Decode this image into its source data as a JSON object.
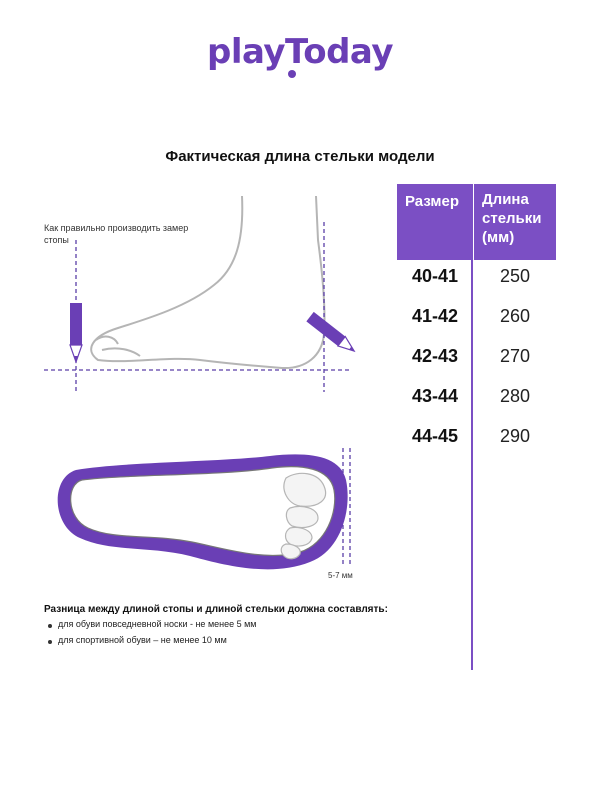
{
  "brand": {
    "logo": "playToday",
    "accent_color": "#7b4fc4"
  },
  "title": "Фактическая длина стельки модели",
  "instruction": "Как правильно производить замер стопы",
  "table": {
    "header_size": "Размер",
    "header_length": "Длина стельки (мм)",
    "rows": [
      {
        "size": "40-41",
        "length": "250"
      },
      {
        "size": "41-42",
        "length": "260"
      },
      {
        "size": "42-43",
        "length": "270"
      },
      {
        "size": "43-44",
        "length": "280"
      },
      {
        "size": "44-45",
        "length": "290"
      }
    ]
  },
  "insole_gap_label": "5-7 мм",
  "note": {
    "title": "Разница между длиной стопы и длиной стельки должна составлять:",
    "items": [
      "для обуви повседневной носки -  не менее 5 мм",
      "для спортивной обуви – не менее 10 мм"
    ]
  },
  "icons": [
    "pencil-icon",
    "pencil-icon",
    "foot-icon",
    "insole-icon"
  ]
}
